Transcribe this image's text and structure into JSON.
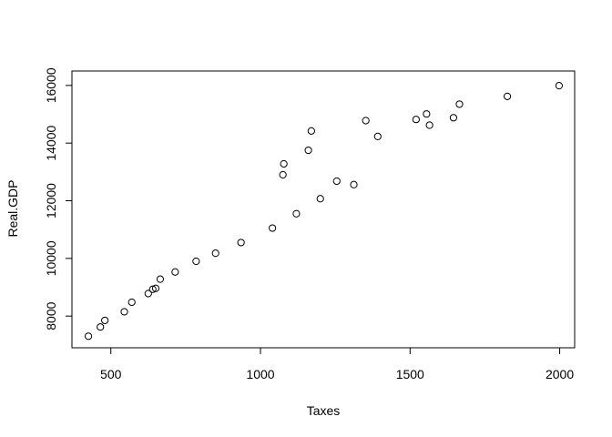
{
  "chart_data": {
    "type": "scatter",
    "xlabel": "Taxes",
    "ylabel": "Real.GDP",
    "xlim": [
      370,
      2050
    ],
    "ylim": [
      6900,
      16500
    ],
    "xticks": [
      500,
      1000,
      1500,
      2000
    ],
    "yticks": [
      8000,
      10000,
      12000,
      14000,
      16000
    ],
    "xtick_labels": [
      "500",
      "1000",
      "1500",
      "2000"
    ],
    "ytick_labels": [
      "8000",
      "10000",
      "12000",
      "14000",
      "16000"
    ],
    "grid": false,
    "points": [
      {
        "x": 425,
        "y": 7300
      },
      {
        "x": 465,
        "y": 7620
      },
      {
        "x": 480,
        "y": 7850
      },
      {
        "x": 545,
        "y": 8150
      },
      {
        "x": 570,
        "y": 8480
      },
      {
        "x": 625,
        "y": 8780
      },
      {
        "x": 640,
        "y": 8930
      },
      {
        "x": 650,
        "y": 8960
      },
      {
        "x": 665,
        "y": 9280
      },
      {
        "x": 715,
        "y": 9530
      },
      {
        "x": 785,
        "y": 9900
      },
      {
        "x": 850,
        "y": 10180
      },
      {
        "x": 935,
        "y": 10550
      },
      {
        "x": 1040,
        "y": 11050
      },
      {
        "x": 1075,
        "y": 12900
      },
      {
        "x": 1078,
        "y": 13280
      },
      {
        "x": 1120,
        "y": 11550
      },
      {
        "x": 1160,
        "y": 13750
      },
      {
        "x": 1170,
        "y": 14420
      },
      {
        "x": 1200,
        "y": 12070
      },
      {
        "x": 1255,
        "y": 12680
      },
      {
        "x": 1312,
        "y": 12560
      },
      {
        "x": 1352,
        "y": 14780
      },
      {
        "x": 1392,
        "y": 14230
      },
      {
        "x": 1520,
        "y": 14820
      },
      {
        "x": 1555,
        "y": 15010
      },
      {
        "x": 1565,
        "y": 14620
      },
      {
        "x": 1645,
        "y": 14880
      },
      {
        "x": 1665,
        "y": 15350
      },
      {
        "x": 1825,
        "y": 15620
      },
      {
        "x": 1998,
        "y": 15990
      }
    ]
  }
}
